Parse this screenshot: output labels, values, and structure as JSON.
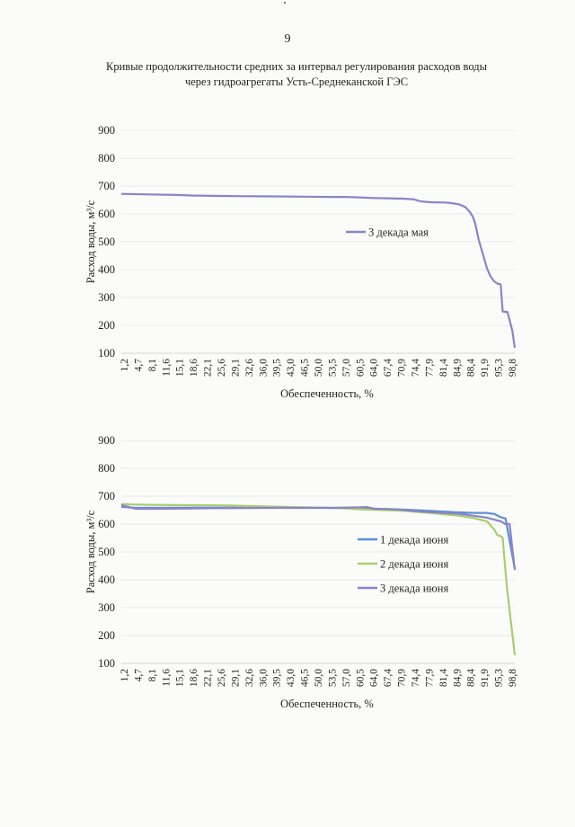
{
  "page": {
    "number": "9"
  },
  "document": {
    "title_line1": "Кривые продолжительности средних за интервал регулирования расходов воды",
    "title_line2": "через гидроагрегаты Усть-Среднеканской ГЭС"
  },
  "chart_data": [
    {
      "type": "line",
      "ylabel": "Расход воды, м³/с",
      "xlabel": "Обеспеченность, %",
      "ylim": [
        100,
        900
      ],
      "yticks": [
        100,
        200,
        300,
        400,
        500,
        600,
        700,
        800,
        900
      ],
      "xticks": [
        "1,2",
        "4,7",
        "8,1",
        "11,6",
        "15,1",
        "18,6",
        "22,1",
        "25,6",
        "29,1",
        "32,6",
        "36,0",
        "39,5",
        "43,0",
        "46,5",
        "50,0",
        "53,5",
        "57,0",
        "60,5",
        "64,0",
        "67,4",
        "70,9",
        "74,4",
        "77,9",
        "81,4",
        "84,9",
        "88,4",
        "91,9",
        "95,3",
        "98,8"
      ],
      "xlim": [
        1.2,
        98.8
      ],
      "grid": true,
      "legend_position": "right-middle",
      "series": [
        {
          "name": "3 декада мая",
          "color": "#8a84c8",
          "points": [
            [
              1.2,
              672
            ],
            [
              8.1,
              670
            ],
            [
              15.1,
              668
            ],
            [
              18.6,
              666
            ],
            [
              29.1,
              664
            ],
            [
              39.5,
              663
            ],
            [
              46.5,
              662
            ],
            [
              53.5,
              661
            ],
            [
              57.0,
              661
            ],
            [
              60.5,
              659
            ],
            [
              64.0,
              657
            ],
            [
              67.4,
              656
            ],
            [
              70.9,
              655
            ],
            [
              73.5,
              653
            ],
            [
              75.5,
              645
            ],
            [
              77.9,
              642
            ],
            [
              81.4,
              641
            ],
            [
              82.5,
              640
            ],
            [
              84.9,
              635
            ],
            [
              86.5,
              625
            ],
            [
              87.6,
              608
            ],
            [
              88.4,
              590
            ],
            [
              89.0,
              565
            ],
            [
              89.8,
              510
            ],
            [
              91.0,
              450
            ],
            [
              91.9,
              405
            ],
            [
              92.8,
              375
            ],
            [
              93.7,
              358
            ],
            [
              94.5,
              350
            ],
            [
              95.3,
              347
            ],
            [
              95.8,
              250
            ],
            [
              97.0,
              248
            ],
            [
              98.2,
              180
            ],
            [
              98.8,
              120
            ]
          ]
        }
      ]
    },
    {
      "type": "line",
      "ylabel": "Расход воды, м³/с",
      "xlabel": "Обеспеченность, %",
      "ylim": [
        100,
        900
      ],
      "yticks": [
        100,
        200,
        300,
        400,
        500,
        600,
        700,
        800,
        900
      ],
      "xticks": [
        "1,2",
        "4,7",
        "8,1",
        "11,6",
        "15,1",
        "18,6",
        "22,1",
        "25,6",
        "29,1",
        "32,6",
        "36,0",
        "39,5",
        "43,0",
        "46,5",
        "50,0",
        "53,5",
        "57,0",
        "60,5",
        "64,0",
        "67,4",
        "70,9",
        "74,4",
        "77,9",
        "81,4",
        "84,9",
        "88,4",
        "91,9",
        "95,3",
        "98,8"
      ],
      "xlim": [
        1.2,
        98.8
      ],
      "grid": true,
      "legend_position": "right-middle",
      "series": [
        {
          "name": "1 декада июня",
          "color": "#5b8fd6",
          "points": [
            [
              1.2,
              662
            ],
            [
              4.7,
              658
            ],
            [
              22.1,
              659
            ],
            [
              46.5,
              659
            ],
            [
              60.5,
              657
            ],
            [
              70.9,
              652
            ],
            [
              77.9,
              647
            ],
            [
              84.9,
              642
            ],
            [
              88.4,
              640
            ],
            [
              91.9,
              640
            ],
            [
              93.7,
              636
            ],
            [
              95.3,
              625
            ],
            [
              96.5,
              620
            ],
            [
              97.5,
              540
            ],
            [
              98.8,
              440
            ]
          ]
        },
        {
          "name": "2 декада июня",
          "color": "#a9cd6e",
          "points": [
            [
              1.2,
              672
            ],
            [
              4.7,
              670
            ],
            [
              8.1,
              669
            ],
            [
              15.1,
              668
            ],
            [
              25.6,
              667
            ],
            [
              32.6,
              665
            ],
            [
              46.5,
              660
            ],
            [
              53.5,
              658
            ],
            [
              57.0,
              656
            ],
            [
              60.5,
              653
            ],
            [
              64.0,
              651
            ],
            [
              70.9,
              648
            ],
            [
              77.9,
              640
            ],
            [
              81.4,
              635
            ],
            [
              84.9,
              630
            ],
            [
              88.4,
              622
            ],
            [
              91.9,
              610
            ],
            [
              93.7,
              580
            ],
            [
              94.5,
              560
            ],
            [
              95.3,
              557
            ],
            [
              95.8,
              550
            ],
            [
              96.8,
              380
            ],
            [
              97.5,
              290
            ],
            [
              98.8,
              130
            ]
          ]
        },
        {
          "name": "3 декада июня",
          "color": "#8a84c8",
          "points": [
            [
              1.2,
              668
            ],
            [
              3.5,
              660
            ],
            [
              4.7,
              655
            ],
            [
              11.6,
              655
            ],
            [
              25.6,
              657
            ],
            [
              39.5,
              658
            ],
            [
              53.5,
              658
            ],
            [
              60.5,
              660
            ],
            [
              62.0,
              661
            ],
            [
              64.0,
              655
            ],
            [
              67.4,
              654
            ],
            [
              70.9,
              651
            ],
            [
              74.4,
              646
            ],
            [
              77.9,
              643
            ],
            [
              81.4,
              640
            ],
            [
              84.9,
              637
            ],
            [
              88.4,
              630
            ],
            [
              91.9,
              623
            ],
            [
              95.3,
              610
            ],
            [
              96.5,
              600
            ],
            [
              97.5,
              600
            ],
            [
              98.8,
              435
            ]
          ]
        }
      ]
    }
  ]
}
